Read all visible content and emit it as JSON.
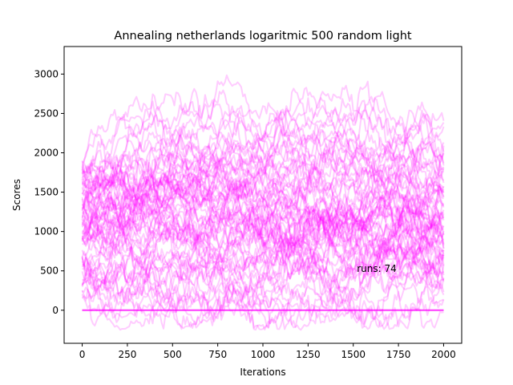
{
  "chart_data": {
    "type": "line",
    "title": "Annealing netherlands logaritmic 500 random light",
    "xlabel": "Iterations",
    "ylabel": "Scores",
    "xlim": [
      -100,
      2100
    ],
    "ylim": [
      -420,
      3350
    ],
    "x_ticks": [
      0,
      250,
      500,
      750,
      1000,
      1250,
      1500,
      1750,
      2000
    ],
    "y_ticks": [
      0,
      500,
      1000,
      1500,
      2000,
      2500,
      3000
    ],
    "annotation": {
      "text": "runs: 74",
      "x": 1520,
      "y": 530
    },
    "series_color": "#ff00ff",
    "series_opacity": 0.2,
    "runs": 74,
    "x_range": [
      0,
      2000
    ],
    "grid": false,
    "legend": "none"
  }
}
